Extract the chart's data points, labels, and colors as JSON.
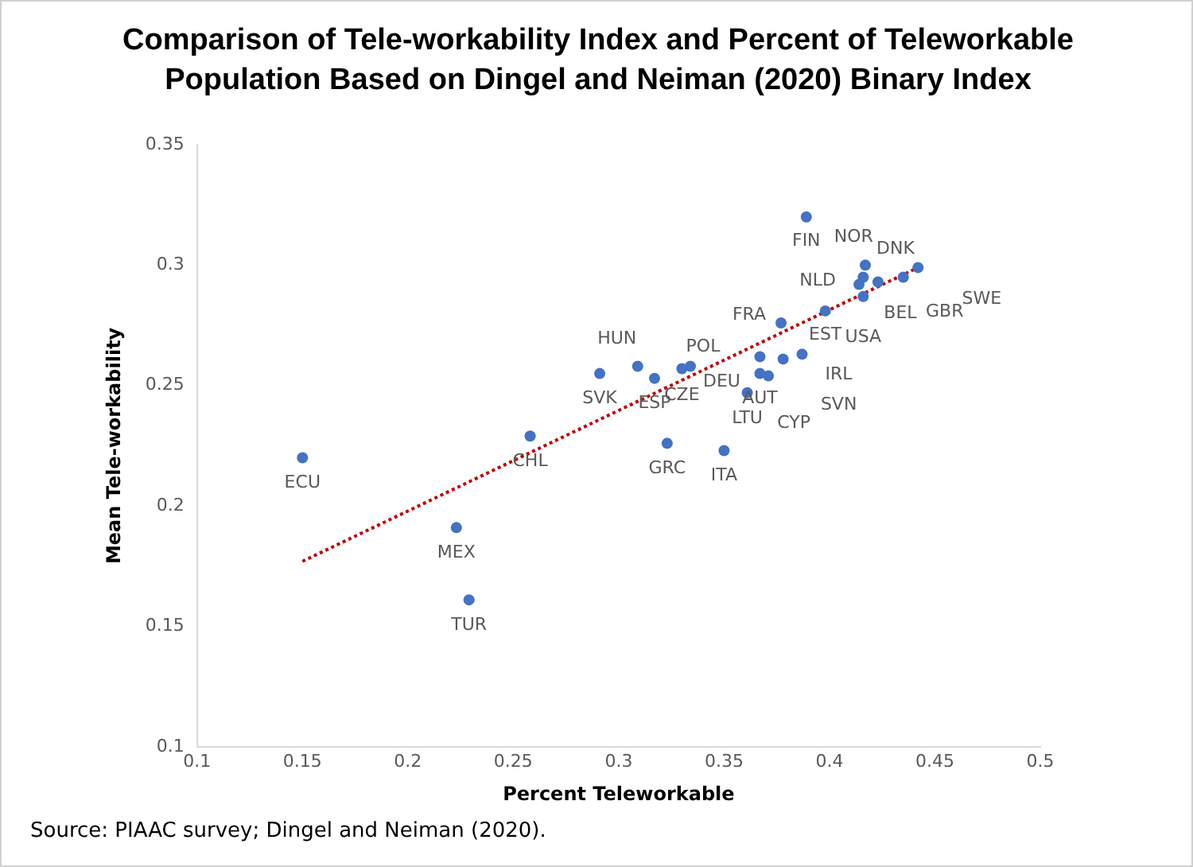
{
  "chart_data": {
    "type": "scatter",
    "title": "Comparison of Tele-workability Index and Percent of Teleworkable Population Based on Dingel and Neiman (2020) Binary Index",
    "xlabel": "Percent Teleworkable",
    "ylabel": "Mean Tele-workability",
    "xlim": [
      0.1,
      0.5
    ],
    "xticks": [
      0.1,
      0.15,
      0.2,
      0.25,
      0.3,
      0.35,
      0.4,
      0.45,
      0.5
    ],
    "ylim": [
      0.1,
      0.35
    ],
    "yticks": [
      0.1,
      0.15,
      0.2,
      0.25,
      0.3,
      0.35
    ],
    "grid": false,
    "legend": false,
    "marker": "circle",
    "series": [
      {
        "color": "#4472c4",
        "x": [
          0.389,
          0.417,
          0.416,
          0.414,
          0.416,
          0.423,
          0.435,
          0.442,
          0.398,
          0.377,
          0.387,
          0.378,
          0.367,
          0.367,
          0.371,
          0.361,
          0.309,
          0.291,
          0.317,
          0.33,
          0.334,
          0.258,
          0.323,
          0.35,
          0.15,
          0.223,
          0.229
        ],
        "values": [
          0.32,
          0.3,
          0.295,
          0.292,
          0.287,
          0.293,
          0.295,
          0.299,
          0.281,
          0.276,
          0.263,
          0.261,
          0.262,
          0.255,
          0.254,
          0.247,
          0.258,
          0.255,
          0.253,
          0.257,
          0.258,
          0.229,
          0.226,
          0.223,
          0.22,
          0.191,
          0.161
        ]
      },
      {
        "type": "line",
        "color": "#c00000",
        "line_style": "dotted",
        "marker": "none",
        "x": [
          0.15,
          0.442
        ],
        "values": [
          0.177,
          0.299
        ]
      }
    ],
    "annotations": [
      {
        "text": "FIN",
        "x": 0.389,
        "y": 0.32
      },
      {
        "text": "DNK",
        "x": 0.417,
        "y": 0.3
      },
      {
        "text": "NOR",
        "x": 0.416,
        "y": 0.295
      },
      {
        "text": "NLD",
        "x": 0.414,
        "y": 0.292
      },
      {
        "text": "USA",
        "x": 0.416,
        "y": 0.287
      },
      {
        "text": "BEL",
        "x": 0.423,
        "y": 0.293
      },
      {
        "text": "GBR",
        "x": 0.435,
        "y": 0.295
      },
      {
        "text": "SWE",
        "x": 0.442,
        "y": 0.299
      },
      {
        "text": "EST",
        "x": 0.398,
        "y": 0.281
      },
      {
        "text": "FRA",
        "x": 0.377,
        "y": 0.276
      },
      {
        "text": "IRL",
        "x": 0.387,
        "y": 0.263
      },
      {
        "text": "SVN",
        "x": 0.378,
        "y": 0.261
      },
      {
        "text": "DEU",
        "x": 0.367,
        "y": 0.262
      },
      {
        "text": "AUT",
        "x": 0.367,
        "y": 0.255
      },
      {
        "text": "CYP",
        "x": 0.371,
        "y": 0.254
      },
      {
        "text": "LTU",
        "x": 0.361,
        "y": 0.247
      },
      {
        "text": "HUN",
        "x": 0.309,
        "y": 0.258
      },
      {
        "text": "SVK",
        "x": 0.291,
        "y": 0.255
      },
      {
        "text": "ESP",
        "x": 0.317,
        "y": 0.253
      },
      {
        "text": "CZE",
        "x": 0.33,
        "y": 0.257
      },
      {
        "text": "POL",
        "x": 0.334,
        "y": 0.258
      },
      {
        "text": "CHL",
        "x": 0.258,
        "y": 0.229
      },
      {
        "text": "GRC",
        "x": 0.323,
        "y": 0.226
      },
      {
        "text": "ITA",
        "x": 0.35,
        "y": 0.223
      },
      {
        "text": "ECU",
        "x": 0.15,
        "y": 0.22
      },
      {
        "text": "MEX",
        "x": 0.223,
        "y": 0.191
      },
      {
        "text": "TUR",
        "x": 0.229,
        "y": 0.161
      },
      "Source: PIAAC survey; Dingel and Neiman (2020)."
    ]
  }
}
